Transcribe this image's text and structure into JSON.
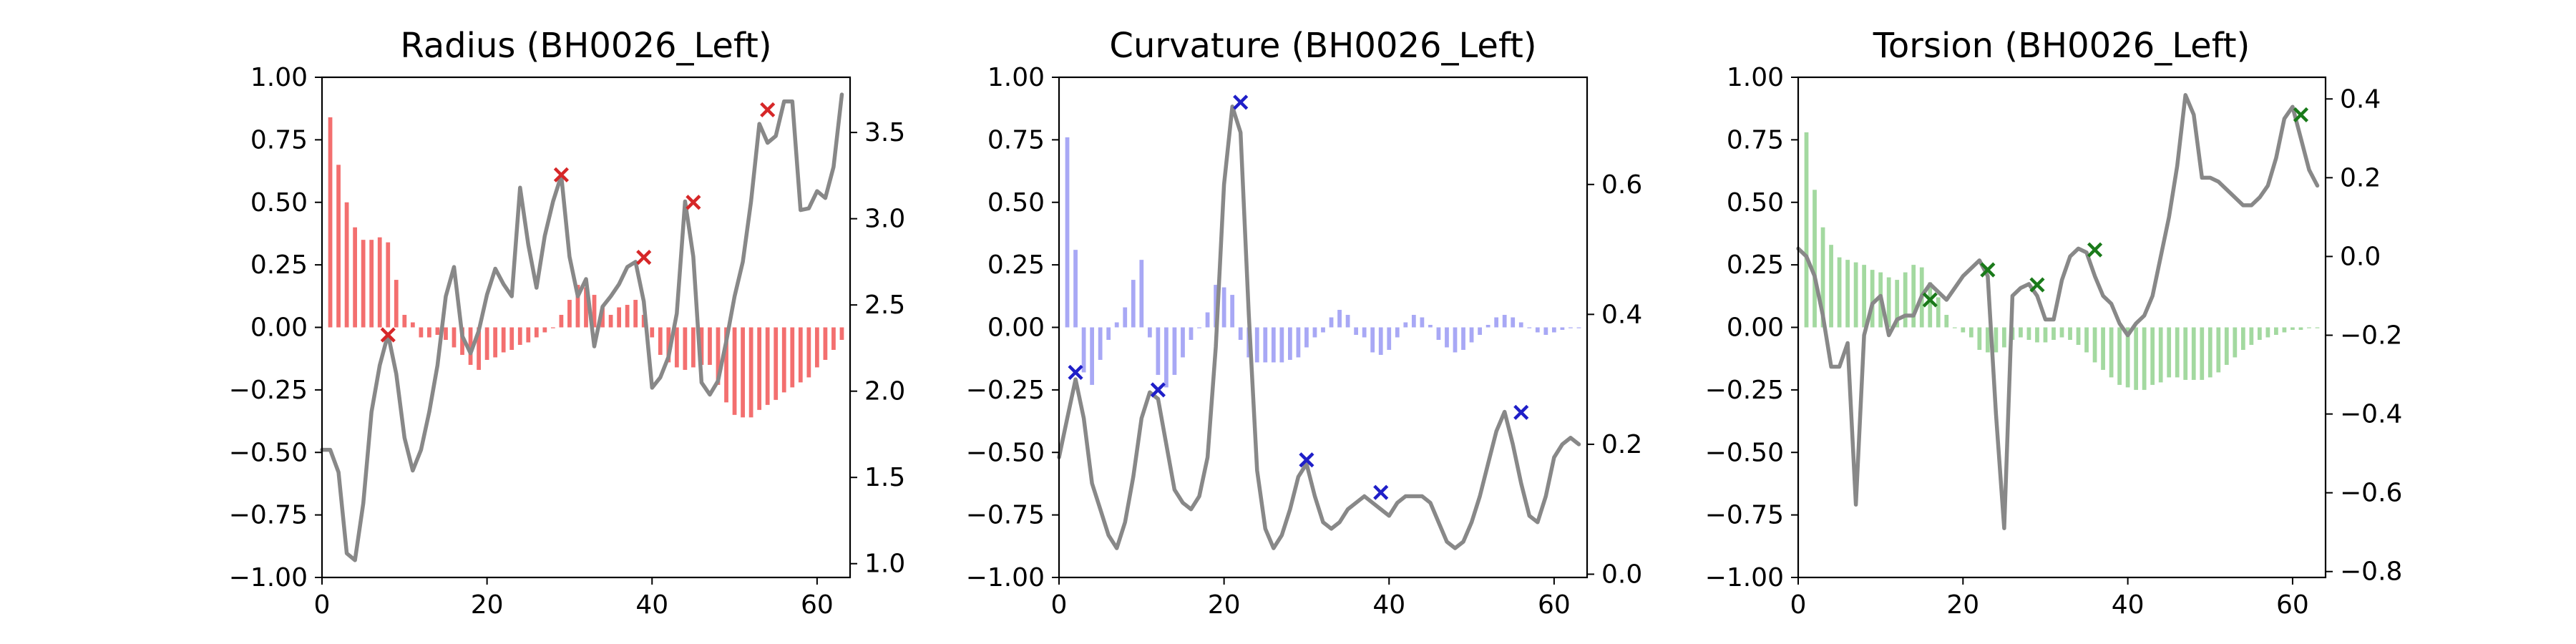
{
  "chart_data": [
    {
      "type": "bar+line",
      "title": "Radius (BH0026_Left)",
      "xlabel": "",
      "ylabel": "",
      "y2label": "",
      "xlim": [
        0,
        64
      ],
      "ylim": [
        -1.0,
        1.0
      ],
      "y2lim": [
        0.92,
        3.82
      ],
      "x_ticks": [
        0,
        20,
        40,
        60
      ],
      "y_ticks": [
        -1.0,
        -0.75,
        -0.5,
        -0.25,
        0.0,
        0.25,
        0.5,
        0.75,
        1.0
      ],
      "y_tick_labels": [
        "−1.00",
        "−0.75",
        "−0.50",
        "−0.25",
        "0.00",
        "0.25",
        "0.50",
        "0.75",
        "1.00"
      ],
      "y2_ticks": [
        1.0,
        1.5,
        2.0,
        2.5,
        3.0,
        3.5
      ],
      "y2_tick_labels": [
        "1.0",
        "1.5",
        "2.0",
        "2.5",
        "3.0",
        "3.5"
      ],
      "colors": {
        "bars": "#f36f6f",
        "line": "#888888",
        "markers": "#d62728"
      },
      "bars": {
        "x": [
          1,
          2,
          3,
          4,
          5,
          6,
          7,
          8,
          9,
          10,
          11,
          12,
          13,
          14,
          15,
          16,
          17,
          18,
          19,
          20,
          21,
          22,
          23,
          24,
          25,
          26,
          27,
          28,
          29,
          30,
          31,
          32,
          33,
          34,
          35,
          36,
          37,
          38,
          39,
          40,
          41,
          42,
          43,
          44,
          45,
          46,
          47,
          48,
          49,
          50,
          51,
          52,
          53,
          54,
          55,
          56,
          57,
          58,
          59,
          60,
          61,
          62,
          63
        ],
        "values": [
          0.84,
          0.65,
          0.5,
          0.4,
          0.35,
          0.35,
          0.36,
          0.34,
          0.19,
          0.05,
          0.02,
          -0.04,
          -0.04,
          -0.03,
          -0.05,
          -0.08,
          -0.11,
          -0.15,
          -0.17,
          -0.13,
          -0.12,
          -0.1,
          -0.09,
          -0.07,
          -0.06,
          -0.04,
          -0.02,
          0.0,
          0.05,
          0.11,
          0.17,
          0.16,
          0.13,
          0.08,
          0.05,
          0.08,
          0.09,
          0.11,
          0.05,
          -0.04,
          -0.11,
          -0.14,
          -0.16,
          -0.17,
          -0.16,
          -0.15,
          -0.15,
          -0.23,
          -0.3,
          -0.35,
          -0.36,
          -0.36,
          -0.33,
          -0.31,
          -0.29,
          -0.26,
          -0.24,
          -0.22,
          -0.2,
          -0.16,
          -0.13,
          -0.09,
          -0.05
        ]
      },
      "line": {
        "x": [
          0,
          1,
          2,
          3,
          4,
          5,
          6,
          7,
          8,
          9,
          10,
          11,
          12,
          13,
          14,
          15,
          16,
          17,
          18,
          19,
          20,
          21,
          22,
          23,
          24,
          25,
          26,
          27,
          28,
          29,
          30,
          31,
          32,
          33,
          34,
          35,
          36,
          37,
          38,
          39,
          40,
          41,
          42,
          43,
          44,
          45,
          46,
          47,
          48,
          49,
          50,
          51,
          52,
          53,
          54,
          55,
          56,
          57,
          58,
          59,
          60,
          61,
          62,
          63
        ],
        "y": [
          1.66,
          1.66,
          1.53,
          1.06,
          1.02,
          1.35,
          1.88,
          2.15,
          2.33,
          2.1,
          1.73,
          1.54,
          1.66,
          1.88,
          2.15,
          2.55,
          2.72,
          2.32,
          2.22,
          2.35,
          2.56,
          2.71,
          2.62,
          2.55,
          3.18,
          2.85,
          2.6,
          2.9,
          3.1,
          3.25,
          2.78,
          2.55,
          2.65,
          2.26,
          2.49,
          2.55,
          2.62,
          2.72,
          2.75,
          2.52,
          2.02,
          2.08,
          2.2,
          2.45,
          3.1,
          2.78,
          2.05,
          1.98,
          2.06,
          2.29,
          2.55,
          2.75,
          3.1,
          3.55,
          3.44,
          3.48,
          3.68,
          3.68,
          3.05,
          3.06,
          3.16,
          3.12,
          3.3,
          3.72
        ]
      },
      "markers": {
        "x": [
          8,
          29,
          39,
          45,
          54
        ],
        "y": [
          -0.03,
          0.61,
          0.28,
          0.5,
          0.87
        ]
      }
    },
    {
      "type": "bar+line",
      "title": "Curvature (BH0026_Left)",
      "xlabel": "",
      "ylabel": "",
      "y2label": "",
      "xlim": [
        0,
        64
      ],
      "ylim": [
        -1.0,
        1.0
      ],
      "y2lim": [
        -0.005,
        0.765
      ],
      "x_ticks": [
        0,
        20,
        40,
        60
      ],
      "y_ticks": [
        -1.0,
        -0.75,
        -0.5,
        -0.25,
        0.0,
        0.25,
        0.5,
        0.75,
        1.0
      ],
      "y_tick_labels": [
        "−1.00",
        "−0.75",
        "−0.50",
        "−0.25",
        "0.00",
        "0.25",
        "0.50",
        "0.75",
        "1.00"
      ],
      "y2_ticks": [
        0.0,
        0.2,
        0.4,
        0.6
      ],
      "y2_tick_labels": [
        "0.0",
        "0.2",
        "0.4",
        "0.6"
      ],
      "colors": {
        "bars": "#a8a8f5",
        "line": "#888888",
        "markers": "#1f1fc8"
      },
      "bars": {
        "x": [
          1,
          2,
          3,
          4,
          5,
          6,
          7,
          8,
          9,
          10,
          11,
          12,
          13,
          14,
          15,
          16,
          17,
          18,
          19,
          20,
          21,
          22,
          23,
          24,
          25,
          26,
          27,
          28,
          29,
          30,
          31,
          32,
          33,
          34,
          35,
          36,
          37,
          38,
          39,
          40,
          41,
          42,
          43,
          44,
          45,
          46,
          47,
          48,
          49,
          50,
          51,
          52,
          53,
          54,
          55,
          56,
          57,
          58,
          59,
          60,
          61,
          62,
          63
        ],
        "values": [
          0.76,
          0.31,
          -0.18,
          -0.23,
          -0.13,
          -0.05,
          0.02,
          0.08,
          0.19,
          0.27,
          -0.04,
          -0.19,
          -0.24,
          -0.19,
          -0.12,
          -0.05,
          0.0,
          0.06,
          0.17,
          0.16,
          0.13,
          -0.05,
          -0.12,
          -0.14,
          -0.14,
          -0.14,
          -0.14,
          -0.13,
          -0.12,
          -0.08,
          -0.04,
          -0.02,
          0.04,
          0.07,
          0.05,
          -0.03,
          -0.04,
          -0.1,
          -0.11,
          -0.09,
          -0.04,
          0.02,
          0.05,
          0.04,
          0.01,
          -0.05,
          -0.08,
          -0.1,
          -0.09,
          -0.06,
          -0.03,
          0.01,
          0.04,
          0.05,
          0.04,
          0.02,
          0.0,
          -0.02,
          -0.03,
          -0.02,
          -0.01,
          0.0,
          0.0
        ]
      },
      "line": {
        "x": [
          0,
          1,
          2,
          3,
          4,
          5,
          6,
          7,
          8,
          9,
          10,
          11,
          12,
          13,
          14,
          15,
          16,
          17,
          18,
          19,
          20,
          21,
          22,
          23,
          24,
          25,
          26,
          27,
          28,
          29,
          30,
          31,
          32,
          33,
          34,
          35,
          36,
          37,
          38,
          39,
          40,
          41,
          42,
          43,
          44,
          45,
          46,
          47,
          48,
          49,
          50,
          51,
          52,
          53,
          54,
          55,
          56,
          57,
          58,
          59,
          60,
          61,
          62,
          63
        ],
        "y": [
          0.18,
          0.24,
          0.3,
          0.24,
          0.14,
          0.1,
          0.06,
          0.04,
          0.08,
          0.15,
          0.24,
          0.28,
          0.27,
          0.2,
          0.13,
          0.11,
          0.1,
          0.12,
          0.18,
          0.35,
          0.6,
          0.72,
          0.68,
          0.4,
          0.16,
          0.07,
          0.04,
          0.06,
          0.1,
          0.15,
          0.17,
          0.12,
          0.08,
          0.07,
          0.08,
          0.1,
          0.11,
          0.12,
          0.11,
          0.1,
          0.09,
          0.11,
          0.12,
          0.12,
          0.12,
          0.11,
          0.08,
          0.05,
          0.04,
          0.05,
          0.08,
          0.12,
          0.17,
          0.22,
          0.25,
          0.2,
          0.14,
          0.09,
          0.08,
          0.12,
          0.18,
          0.2,
          0.21,
          0.2
        ]
      },
      "markers": {
        "x": [
          2,
          12,
          22,
          30,
          39,
          56
        ],
        "y": [
          -0.18,
          -0.25,
          0.9,
          -0.53,
          -0.66,
          -0.34
        ]
      }
    },
    {
      "type": "bar+line",
      "title": "Torsion (BH0026_Left)",
      "xlabel": "",
      "ylabel": "",
      "y2label": "",
      "xlim": [
        0,
        64
      ],
      "ylim": [
        -1.0,
        1.0
      ],
      "y2lim": [
        -0.815,
        0.455
      ],
      "x_ticks": [
        0,
        20,
        40,
        60
      ],
      "y_ticks": [
        -1.0,
        -0.75,
        -0.5,
        -0.25,
        0.0,
        0.25,
        0.5,
        0.75,
        1.0
      ],
      "y_tick_labels": [
        "−1.00",
        "−0.75",
        "−0.50",
        "−0.25",
        "0.00",
        "0.25",
        "0.50",
        "0.75",
        "1.00"
      ],
      "y2_ticks": [
        -0.8,
        -0.6,
        -0.4,
        -0.2,
        0.0,
        0.2,
        0.4
      ],
      "y2_tick_labels": [
        "−0.8",
        "−0.6",
        "−0.4",
        "−0.2",
        "0.0",
        "0.2",
        "0.4"
      ],
      "colors": {
        "bars": "#a3d9a0",
        "line": "#888888",
        "markers": "#1a7a1a"
      },
      "bars": {
        "x": [
          1,
          2,
          3,
          4,
          5,
          6,
          7,
          8,
          9,
          10,
          11,
          12,
          13,
          14,
          15,
          16,
          17,
          18,
          19,
          20,
          21,
          22,
          23,
          24,
          25,
          26,
          27,
          28,
          29,
          30,
          31,
          32,
          33,
          34,
          35,
          36,
          37,
          38,
          39,
          40,
          41,
          42,
          43,
          44,
          45,
          46,
          47,
          48,
          49,
          50,
          51,
          52,
          53,
          54,
          55,
          56,
          57,
          58,
          59,
          60,
          61,
          62,
          63
        ],
        "values": [
          0.78,
          0.55,
          0.4,
          0.33,
          0.28,
          0.27,
          0.26,
          0.25,
          0.23,
          0.22,
          0.2,
          0.19,
          0.22,
          0.25,
          0.24,
          0.18,
          0.12,
          0.05,
          0.0,
          -0.02,
          -0.04,
          -0.09,
          -0.1,
          -0.1,
          -0.08,
          -0.05,
          -0.04,
          -0.05,
          -0.06,
          -0.06,
          -0.05,
          -0.04,
          -0.05,
          -0.07,
          -0.1,
          -0.14,
          -0.17,
          -0.2,
          -0.23,
          -0.24,
          -0.25,
          -0.25,
          -0.23,
          -0.22,
          -0.2,
          -0.2,
          -0.21,
          -0.21,
          -0.21,
          -0.2,
          -0.18,
          -0.15,
          -0.12,
          -0.09,
          -0.07,
          -0.05,
          -0.04,
          -0.03,
          -0.02,
          -0.01,
          -0.01,
          0.0,
          0.0
        ]
      },
      "line": {
        "x": [
          0,
          1,
          2,
          3,
          4,
          5,
          6,
          7,
          8,
          9,
          10,
          11,
          12,
          13,
          14,
          15,
          16,
          17,
          18,
          19,
          20,
          21,
          22,
          23,
          24,
          25,
          26,
          27,
          28,
          29,
          30,
          31,
          32,
          33,
          34,
          35,
          36,
          37,
          38,
          39,
          40,
          41,
          42,
          43,
          44,
          45,
          46,
          47,
          48,
          49,
          50,
          51,
          52,
          53,
          54,
          55,
          56,
          57,
          58,
          59,
          60,
          61,
          62,
          63
        ],
        "y": [
          0.02,
          0.0,
          -0.05,
          -0.15,
          -0.28,
          -0.28,
          -0.22,
          -0.63,
          -0.2,
          -0.12,
          -0.1,
          -0.2,
          -0.16,
          -0.15,
          -0.15,
          -0.1,
          -0.07,
          -0.09,
          -0.11,
          -0.08,
          -0.05,
          -0.03,
          -0.01,
          -0.05,
          -0.4,
          -0.69,
          -0.1,
          -0.08,
          -0.07,
          -0.1,
          -0.16,
          -0.16,
          -0.06,
          0.0,
          0.02,
          0.01,
          -0.05,
          -0.1,
          -0.12,
          -0.17,
          -0.2,
          -0.17,
          -0.15,
          -0.1,
          0.0,
          0.1,
          0.23,
          0.41,
          0.36,
          0.2,
          0.2,
          0.19,
          0.17,
          0.15,
          0.13,
          0.13,
          0.15,
          0.18,
          0.25,
          0.35,
          0.38,
          0.3,
          0.22,
          0.18
        ]
      },
      "markers": {
        "x": [
          16,
          23,
          29,
          36,
          61
        ],
        "y": [
          0.11,
          0.23,
          0.17,
          0.31,
          0.85
        ]
      }
    }
  ]
}
